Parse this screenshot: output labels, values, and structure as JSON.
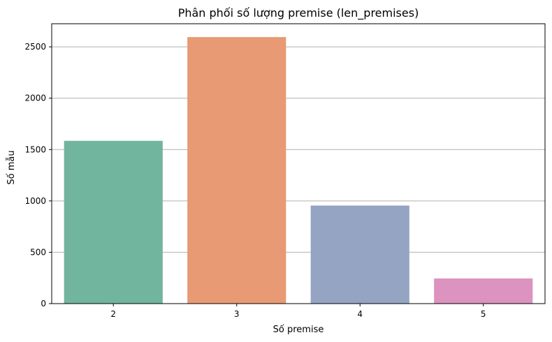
{
  "chart_data": {
    "type": "bar",
    "title": "Phân phối số lượng premise (len_premises)",
    "xlabel": "Số premise",
    "ylabel": "Số mẫu",
    "categories": [
      "2",
      "3",
      "4",
      "5"
    ],
    "values": [
      1585,
      2595,
      955,
      245
    ],
    "ylim": [
      0,
      2725
    ],
    "yticks": [
      0,
      500,
      1000,
      1500,
      2000,
      2500
    ],
    "grid": "y-major",
    "colors": [
      "#72b59e",
      "#e89a74",
      "#95a4c3",
      "#dc93c0"
    ]
  }
}
